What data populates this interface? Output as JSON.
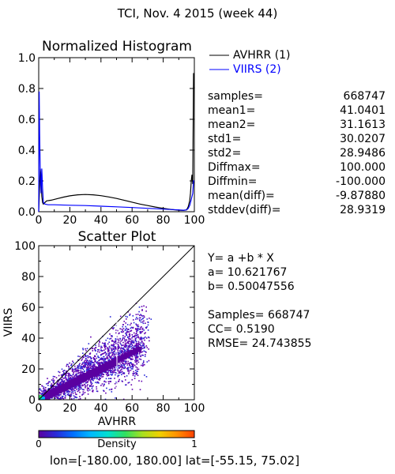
{
  "header": {
    "title": "TCI,  Nov. 4 2015 (week 44)"
  },
  "chart_data": [
    {
      "type": "line",
      "title": "Normalized Histogram",
      "xlim": [
        0,
        100
      ],
      "ylim": [
        0,
        1
      ],
      "x_ticks": [
        "0",
        "20",
        "40",
        "60",
        "80",
        "100"
      ],
      "x_minor_ticks": [
        10,
        30,
        50,
        70,
        90
      ],
      "y_ticks": [
        "0.0",
        "0.2",
        "0.4",
        "0.6",
        "0.8",
        "1.0"
      ],
      "series": [
        {
          "name": "AVHRR (1)",
          "color": "#000000",
          "x": [
            0,
            0.5,
            1,
            1.5,
            2,
            2.5,
            3,
            4,
            5,
            8,
            12,
            16,
            20,
            25,
            30,
            35,
            40,
            45,
            50,
            55,
            60,
            65,
            70,
            75,
            80,
            85,
            90,
            93,
            95,
            96,
            97,
            97.5,
            98,
            98.5,
            99,
            99.5,
            100
          ],
          "y": [
            0.0,
            0.15,
            0.28,
            0.22,
            0.1,
            0.06,
            0.05,
            0.06,
            0.07,
            0.075,
            0.085,
            0.095,
            0.103,
            0.11,
            0.112,
            0.11,
            0.104,
            0.096,
            0.086,
            0.074,
            0.062,
            0.05,
            0.04,
            0.03,
            0.022,
            0.015,
            0.01,
            0.008,
            0.012,
            0.03,
            0.07,
            0.12,
            0.2,
            0.24,
            0.18,
            0.9,
            0.8
          ]
        },
        {
          "name": "VIIRS (2)",
          "color": "#0000ff",
          "x": [
            0,
            0.3,
            0.6,
            1,
            1.5,
            2,
            2.5,
            3,
            4,
            6,
            10,
            20,
            30,
            40,
            50,
            60,
            70,
            80,
            90,
            93,
            95,
            96,
            97,
            98,
            99,
            99.5,
            100
          ],
          "y": [
            0.0,
            0.78,
            0.5,
            0.25,
            0.12,
            0.28,
            0.15,
            0.06,
            0.05,
            0.045,
            0.045,
            0.042,
            0.04,
            0.036,
            0.032,
            0.027,
            0.022,
            0.017,
            0.012,
            0.01,
            0.012,
            0.02,
            0.04,
            0.08,
            0.12,
            0.2,
            0.2
          ]
        }
      ]
    },
    {
      "type": "scatter",
      "title": "Scatter Plot",
      "xlabel": "AVHRR",
      "ylabel": "VIIRS",
      "xlim": [
        0,
        100
      ],
      "ylim": [
        0,
        100
      ],
      "x_ticks": [
        "0",
        "20",
        "40",
        "60",
        "80",
        "100"
      ],
      "x_minor_ticks": [
        10,
        30,
        50,
        70,
        90
      ],
      "y_ticks": [
        "0",
        "20",
        "40",
        "60",
        "80",
        "100"
      ],
      "y_minor_ticks": [
        10,
        30,
        50,
        70,
        90
      ],
      "one_to_one_line": {
        "x": [
          0,
          100
        ],
        "y": [
          0,
          100
        ]
      },
      "density_points": [
        [
          2,
          1
        ],
        [
          3,
          2
        ],
        [
          4,
          2
        ],
        [
          5,
          3
        ],
        [
          6,
          4
        ],
        [
          7,
          3
        ],
        [
          8,
          5
        ],
        [
          9,
          4
        ],
        [
          10,
          6
        ],
        [
          11,
          5
        ],
        [
          12,
          7
        ],
        [
          13,
          6
        ],
        [
          14,
          8
        ],
        [
          15,
          7
        ],
        [
          16,
          9
        ],
        [
          17,
          8
        ],
        [
          18,
          10
        ],
        [
          19,
          9
        ],
        [
          20,
          11
        ],
        [
          21,
          10
        ],
        [
          22,
          12
        ],
        [
          23,
          11
        ],
        [
          24,
          13
        ],
        [
          25,
          12
        ],
        [
          26,
          14
        ],
        [
          27,
          13
        ],
        [
          28,
          15
        ],
        [
          29,
          14
        ],
        [
          30,
          16
        ],
        [
          31,
          15
        ],
        [
          32,
          17
        ],
        [
          33,
          16
        ],
        [
          34,
          18
        ],
        [
          35,
          17
        ],
        [
          36,
          19
        ],
        [
          37,
          18
        ],
        [
          38,
          20
        ],
        [
          39,
          19
        ],
        [
          40,
          21
        ],
        [
          41,
          20
        ],
        [
          42,
          22
        ],
        [
          43,
          21
        ],
        [
          44,
          23
        ],
        [
          45,
          22
        ],
        [
          46,
          24
        ],
        [
          47,
          23
        ],
        [
          48,
          25
        ],
        [
          49,
          24
        ],
        [
          50,
          26
        ],
        [
          52,
          27
        ],
        [
          54,
          28
        ],
        [
          56,
          29
        ],
        [
          58,
          30
        ],
        [
          60,
          31
        ],
        [
          62,
          32
        ],
        [
          64,
          33
        ]
      ]
    }
  ],
  "legend": {
    "entries": [
      {
        "label": "AVHRR (1)",
        "color": "#000000"
      },
      {
        "label": "VIIRS (2)",
        "color": "#0000ff"
      }
    ]
  },
  "stats": [
    {
      "label": "samples=",
      "value": "668747"
    },
    {
      "label": "mean1=",
      "value": "41.0401"
    },
    {
      "label": "mean2=",
      "value": "31.1613"
    },
    {
      "label": "std1=",
      "value": "30.0207"
    },
    {
      "label": "std2=",
      "value": "28.9486"
    },
    {
      "label": "Diffmax=",
      "value": "100.000"
    },
    {
      "label": "Diffmin=",
      "value": "-100.000"
    },
    {
      "label": "mean(diff)=",
      "value": "-9.87880"
    },
    {
      "label": "stddev(diff)=",
      "value": "28.9319"
    }
  ],
  "regression": {
    "equation": "Y= a +b * X",
    "a": "a= 10.621767",
    "b": "b= 0.50047556",
    "samples": "Samples= 668747",
    "cc": "CC=  0.5190",
    "rmse": "RMSE= 24.743855"
  },
  "colorbar": {
    "label": "Density",
    "min_label": "0",
    "max_label": "1",
    "colors": [
      "#5a00a0",
      "#2a2ad8",
      "#0070ff",
      "#00b8ff",
      "#00e0d0",
      "#30e060",
      "#a8e020",
      "#f0d000",
      "#ff9000",
      "#ff4000"
    ]
  },
  "footer": {
    "range": "lon=[-180.00, 180.00] lat=[-55.15, 75.02]"
  }
}
